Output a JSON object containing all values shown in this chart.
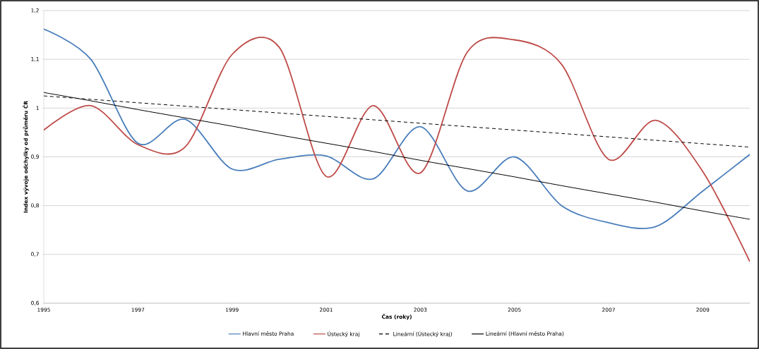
{
  "chart_data": {
    "type": "line",
    "xlabel": "Čas (roky)",
    "ylabel": "Index vývoje odchylky od průměru ČR",
    "x": [
      1995,
      1996,
      1997,
      1998,
      1999,
      2000,
      2001,
      2002,
      2003,
      2004,
      2005,
      2006,
      2007,
      2008,
      2009,
      2010
    ],
    "series": [
      {
        "name": "Hlavní město Praha",
        "color": "#4a7ebb",
        "values": [
          1.162,
          1.1,
          0.928,
          0.977,
          0.875,
          0.895,
          0.902,
          0.855,
          0.962,
          0.83,
          0.9,
          0.8,
          0.765,
          0.757,
          0.83,
          0.905
        ]
      },
      {
        "name": "Ústecký kraj",
        "color": "#be4b48",
        "values": [
          0.955,
          1.005,
          0.925,
          0.92,
          1.11,
          1.125,
          0.86,
          1.005,
          0.867,
          1.115,
          1.14,
          1.09,
          0.895,
          0.975,
          0.87,
          0.685
        ]
      },
      {
        "name": "Lineární (Ústecký kraj)",
        "color": "#000000",
        "type": "line",
        "line_style": "dashed",
        "values": [
          1.025,
          1.018,
          1.011,
          1.004,
          0.997,
          0.99,
          0.983,
          0.976,
          0.969,
          0.962,
          0.955,
          0.948,
          0.941,
          0.934,
          0.927,
          0.92
        ]
      },
      {
        "name": "Lineární (Hlavní město Praha)",
        "color": "#000000",
        "type": "line",
        "line_style": "solid",
        "values": [
          1.032,
          1.015,
          0.997,
          0.98,
          0.963,
          0.945,
          0.928,
          0.911,
          0.893,
          0.876,
          0.859,
          0.841,
          0.824,
          0.807,
          0.789,
          0.772
        ]
      }
    ],
    "xlim": [
      1995,
      2010
    ],
    "xticks": [
      1995,
      1997,
      1999,
      2001,
      2003,
      2005,
      2007,
      2009
    ],
    "ylim": [
      0.6,
      1.2
    ],
    "yticks": [
      {
        "value": 0.6,
        "label": "0,6"
      },
      {
        "value": 0.7,
        "label": "0,7"
      },
      {
        "value": 0.8,
        "label": "0,8"
      },
      {
        "value": 0.9,
        "label": "0,9"
      },
      1,
      {
        "value": 1.1,
        "label": "1,1"
      },
      {
        "value": 1.2,
        "label": "1,2"
      }
    ],
    "grid": "y",
    "legend": "bottom",
    "marker": "none",
    "line_style": "solid"
  }
}
